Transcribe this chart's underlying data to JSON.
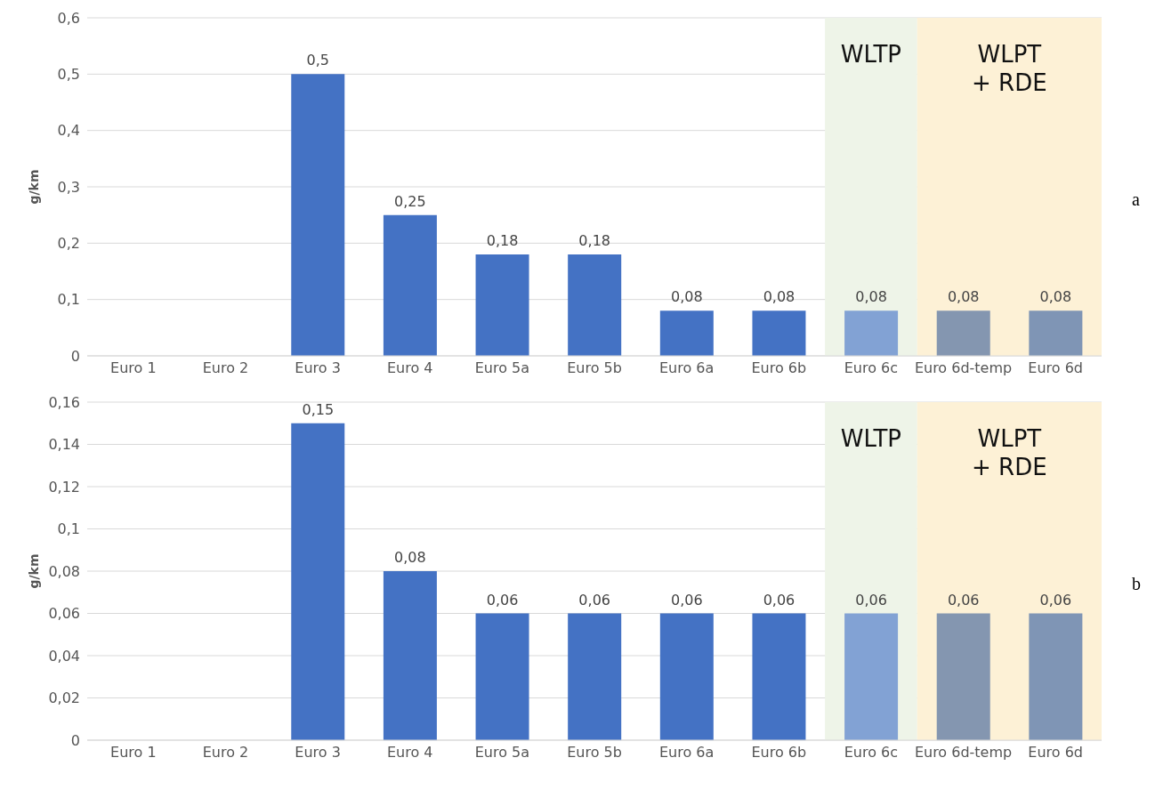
{
  "chart_data": [
    {
      "type": "bar",
      "ylabel": "g/km",
      "categories": [
        "Euro 1",
        "Euro 2",
        "Euro 3",
        "Euro 4",
        "Euro 5a",
        "Euro 5b",
        "Euro 6a",
        "Euro 6b",
        "Euro 6c",
        "Euro 6d-temp",
        "Euro 6d"
      ],
      "values": [
        null,
        null,
        0.5,
        0.25,
        0.18,
        0.18,
        0.08,
        0.08,
        0.08,
        0.08,
        0.08
      ],
      "value_labels": [
        null,
        null,
        "0,5",
        "0,25",
        "0,18",
        "0,18",
        "0,08",
        "0,08",
        "0,08",
        "0,08",
        "0,08"
      ],
      "colors": [
        "#4472c4",
        "#4472c4",
        "#4472c4",
        "#4472c4",
        "#4472c4",
        "#4472c4",
        "#4472c4",
        "#4472c4",
        "#82a2d4",
        "#8496b0",
        "#7f95b5"
      ],
      "ylim": [
        0,
        0.6
      ],
      "yticks": [
        {
          "value": 0,
          "label": "0"
        },
        {
          "value": 0.1,
          "label": "0,1"
        },
        {
          "value": 0.2,
          "label": "0,2"
        },
        {
          "value": 0.3,
          "label": "0,3"
        },
        {
          "value": 0.4,
          "label": "0,4"
        },
        {
          "value": 0.5,
          "label": "0,5"
        },
        {
          "value": 0.6,
          "label": "0,6"
        }
      ],
      "grid": "y",
      "bands": [
        {
          "axis": "x",
          "from": "Euro 6c",
          "to": "Euro 6c",
          "label": "WLTP",
          "color": "#eef4e8"
        },
        {
          "axis": "x",
          "from": "Euro 6d-temp",
          "to": "Euro 6d",
          "label": "WLPT\n+ RDE",
          "color": "#fdf1d6"
        }
      ],
      "annotations": [
        "a"
      ]
    },
    {
      "type": "bar",
      "ylabel": "g/km",
      "categories": [
        "Euro 1",
        "Euro 2",
        "Euro 3",
        "Euro 4",
        "Euro 5a",
        "Euro 5b",
        "Euro 6a",
        "Euro 6b",
        "Euro 6c",
        "Euro 6d-temp",
        "Euro 6d"
      ],
      "values": [
        null,
        null,
        0.15,
        0.08,
        0.06,
        0.06,
        0.06,
        0.06,
        0.06,
        0.06,
        0.06
      ],
      "value_labels": [
        null,
        null,
        "0,15",
        "0,08",
        "0,06",
        "0,06",
        "0,06",
        "0,06",
        "0,06",
        "0,06",
        "0,06"
      ],
      "colors": [
        "#4472c4",
        "#4472c4",
        "#4472c4",
        "#4472c4",
        "#4472c4",
        "#4472c4",
        "#4472c4",
        "#4472c4",
        "#82a2d4",
        "#8496b0",
        "#7f95b5"
      ],
      "ylim": [
        0,
        0.16
      ],
      "yticks": [
        {
          "value": 0,
          "label": "0"
        },
        {
          "value": 0.02,
          "label": "0,02"
        },
        {
          "value": 0.04,
          "label": "0,04"
        },
        {
          "value": 0.06,
          "label": "0,06"
        },
        {
          "value": 0.08,
          "label": "0,08"
        },
        {
          "value": 0.1,
          "label": "0,1"
        },
        {
          "value": 0.12,
          "label": "0,12"
        },
        {
          "value": 0.14,
          "label": "0,14"
        },
        {
          "value": 0.16,
          "label": "0,16"
        }
      ],
      "grid": "y",
      "bands": [
        {
          "axis": "x",
          "from": "Euro 6c",
          "to": "Euro 6c",
          "label": "WLTP",
          "color": "#eef4e8"
        },
        {
          "axis": "x",
          "from": "Euro 6d-temp",
          "to": "Euro 6d",
          "label": "WLPT\n+ RDE",
          "color": "#fdf1d6"
        }
      ],
      "annotations": [
        "b"
      ]
    }
  ]
}
